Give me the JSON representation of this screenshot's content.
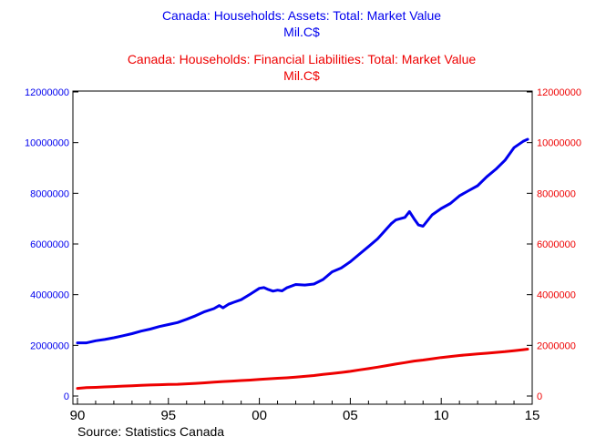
{
  "chart_data": {
    "type": "line",
    "titles": [
      {
        "text": "Canada: Households: Assets: Total: Market Value",
        "unit": "Mil.C$",
        "color": "#0000ee"
      },
      {
        "text": "Canada: Households: Financial Liabilities: Total: Market Value",
        "unit": "Mil.C$",
        "color": "#ee0000"
      }
    ],
    "source": "Source:  Statistics Canada",
    "x_ticks": [
      {
        "value": 1990,
        "label": "90"
      },
      {
        "value": 1995,
        "label": "95"
      },
      {
        "value": 2000,
        "label": "00"
      },
      {
        "value": 2005,
        "label": "05"
      },
      {
        "value": 2010,
        "label": "10"
      },
      {
        "value": 2015,
        "label": "15"
      }
    ],
    "xlim": [
      1989.75,
      2015
    ],
    "y_left": {
      "lim": [
        0,
        12000000
      ],
      "ticks": [
        "0",
        "2000000",
        "4000000",
        "6000000",
        "8000000",
        "10000000",
        "12000000"
      ],
      "color": "#0000ee"
    },
    "y_right": {
      "lim": [
        0,
        12000000
      ],
      "ticks": [
        "0",
        "2000000",
        "4000000",
        "6000000",
        "8000000",
        "10000000",
        "12000000"
      ],
      "color": "#ee0000"
    },
    "grid": false,
    "series": [
      {
        "axis": "left",
        "color": "#0000ee",
        "points": [
          [
            1990.0,
            2100000
          ],
          [
            1990.5,
            2100000
          ],
          [
            1991.0,
            2180000
          ],
          [
            1991.5,
            2230000
          ],
          [
            1992.0,
            2300000
          ],
          [
            1992.5,
            2380000
          ],
          [
            1993.0,
            2460000
          ],
          [
            1993.5,
            2560000
          ],
          [
            1994.0,
            2640000
          ],
          [
            1994.5,
            2740000
          ],
          [
            1995.0,
            2820000
          ],
          [
            1995.5,
            2900000
          ],
          [
            1996.0,
            3030000
          ],
          [
            1996.5,
            3170000
          ],
          [
            1997.0,
            3330000
          ],
          [
            1997.5,
            3450000
          ],
          [
            1997.8,
            3570000
          ],
          [
            1998.0,
            3480000
          ],
          [
            1998.3,
            3620000
          ],
          [
            1998.6,
            3700000
          ],
          [
            1999.0,
            3800000
          ],
          [
            1999.5,
            4020000
          ],
          [
            2000.0,
            4250000
          ],
          [
            2000.25,
            4280000
          ],
          [
            2000.5,
            4200000
          ],
          [
            2000.75,
            4140000
          ],
          [
            2001.0,
            4180000
          ],
          [
            2001.25,
            4150000
          ],
          [
            2001.5,
            4270000
          ],
          [
            2002.0,
            4400000
          ],
          [
            2002.5,
            4380000
          ],
          [
            2003.0,
            4420000
          ],
          [
            2003.5,
            4600000
          ],
          [
            2004.0,
            4900000
          ],
          [
            2004.5,
            5050000
          ],
          [
            2005.0,
            5300000
          ],
          [
            2005.5,
            5600000
          ],
          [
            2006.0,
            5900000
          ],
          [
            2006.5,
            6200000
          ],
          [
            2007.0,
            6600000
          ],
          [
            2007.25,
            6800000
          ],
          [
            2007.5,
            6950000
          ],
          [
            2007.75,
            7000000
          ],
          [
            2008.0,
            7050000
          ],
          [
            2008.25,
            7280000
          ],
          [
            2008.5,
            7000000
          ],
          [
            2008.75,
            6750000
          ],
          [
            2009.0,
            6700000
          ],
          [
            2009.5,
            7150000
          ],
          [
            2010.0,
            7400000
          ],
          [
            2010.5,
            7600000
          ],
          [
            2011.0,
            7900000
          ],
          [
            2011.5,
            8100000
          ],
          [
            2012.0,
            8300000
          ],
          [
            2012.5,
            8650000
          ],
          [
            2013.0,
            8950000
          ],
          [
            2013.5,
            9300000
          ],
          [
            2014.0,
            9800000
          ],
          [
            2014.5,
            10050000
          ],
          [
            2014.75,
            10130000
          ]
        ]
      },
      {
        "axis": "right",
        "color": "#ee0000",
        "points": [
          [
            1990.0,
            300000
          ],
          [
            1990.5,
            330000
          ],
          [
            1991.0,
            340000
          ],
          [
            1991.5,
            360000
          ],
          [
            1992.0,
            375000
          ],
          [
            1992.5,
            390000
          ],
          [
            1993.0,
            405000
          ],
          [
            1993.5,
            420000
          ],
          [
            1994.0,
            435000
          ],
          [
            1994.5,
            445000
          ],
          [
            1995.0,
            455000
          ],
          [
            1995.5,
            465000
          ],
          [
            1996.0,
            480000
          ],
          [
            1996.5,
            500000
          ],
          [
            1997.0,
            520000
          ],
          [
            1997.5,
            545000
          ],
          [
            1998.0,
            570000
          ],
          [
            1998.5,
            590000
          ],
          [
            1999.0,
            610000
          ],
          [
            1999.5,
            630000
          ],
          [
            2000.0,
            655000
          ],
          [
            2000.5,
            680000
          ],
          [
            2001.0,
            700000
          ],
          [
            2001.5,
            720000
          ],
          [
            2002.0,
            745000
          ],
          [
            2002.5,
            775000
          ],
          [
            2003.0,
            810000
          ],
          [
            2003.5,
            850000
          ],
          [
            2004.0,
            890000
          ],
          [
            2004.5,
            930000
          ],
          [
            2005.0,
            975000
          ],
          [
            2005.5,
            1030000
          ],
          [
            2006.0,
            1080000
          ],
          [
            2006.5,
            1140000
          ],
          [
            2007.0,
            1200000
          ],
          [
            2007.5,
            1260000
          ],
          [
            2008.0,
            1320000
          ],
          [
            2008.5,
            1380000
          ],
          [
            2009.0,
            1420000
          ],
          [
            2009.5,
            1470000
          ],
          [
            2010.0,
            1520000
          ],
          [
            2010.5,
            1560000
          ],
          [
            2011.0,
            1600000
          ],
          [
            2011.5,
            1630000
          ],
          [
            2012.0,
            1660000
          ],
          [
            2012.5,
            1690000
          ],
          [
            2013.0,
            1720000
          ],
          [
            2013.5,
            1750000
          ],
          [
            2014.0,
            1790000
          ],
          [
            2014.5,
            1830000
          ],
          [
            2014.75,
            1850000
          ]
        ]
      }
    ]
  }
}
